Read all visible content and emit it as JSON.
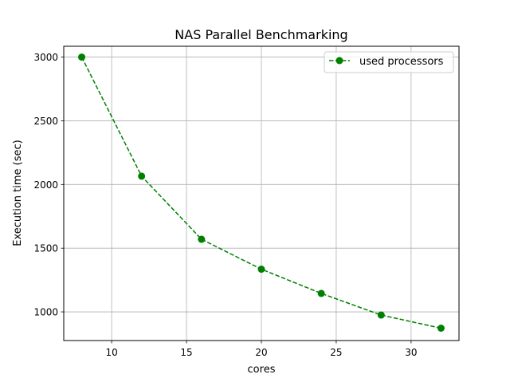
{
  "chart_data": {
    "type": "line",
    "title": "NAS Parallel Benchmarking",
    "xlabel": "cores",
    "ylabel": "Execution time (sec)",
    "xlim": [
      6.8,
      33.2
    ],
    "ylim": [
      775,
      3085
    ],
    "xticks": [
      10,
      15,
      20,
      25,
      30
    ],
    "yticks": [
      1000,
      1500,
      2000,
      2500,
      3000
    ],
    "grid": true,
    "legend_position": "top-right",
    "series": [
      {
        "name": "used processors",
        "color": "#008000",
        "line_style": "dashed",
        "marker": "circle",
        "x": [
          8,
          12,
          16,
          20,
          24,
          28,
          32
        ],
        "y": [
          3000,
          2065,
          1570,
          1335,
          1145,
          975,
          872
        ]
      }
    ]
  }
}
